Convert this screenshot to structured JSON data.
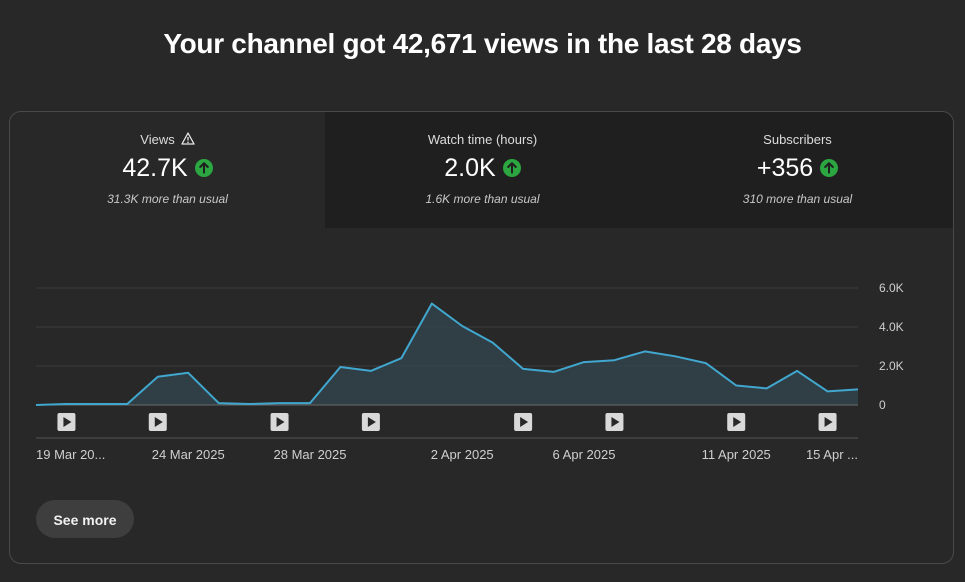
{
  "headline": "Your channel got 42,671 views in the last 28 days",
  "tabs": [
    {
      "label": "Views",
      "value": "42.7K",
      "sub": "31.3K more than usual",
      "icon": "up-arrow-icon",
      "active": true,
      "has_warning": true
    },
    {
      "label": "Watch time (hours)",
      "value": "2.0K",
      "sub": "1.6K more than usual",
      "icon": "up-arrow-icon",
      "active": false,
      "has_warning": false
    },
    {
      "label": "Subscribers",
      "value": "+356",
      "sub": "310 more than usual",
      "icon": "up-arrow-icon",
      "active": false,
      "has_warning": false
    }
  ],
  "colors": {
    "line": "#41a7cf",
    "area": "#33464f",
    "positive": "#2ba640",
    "grid": "#3d3d3d",
    "axis": "#8a8a8a"
  },
  "see_more_label": "See more",
  "chart_data": {
    "type": "area",
    "series": [
      {
        "values": [
          0,
          50,
          50,
          50,
          1450,
          1650,
          100,
          50,
          100,
          100,
          1950,
          1750,
          2400,
          5200,
          4050,
          3200,
          1850,
          1700,
          2200,
          2300,
          2750,
          2500,
          2150,
          1000,
          850,
          1750,
          700,
          800
        ]
      }
    ],
    "x_ticks": [
      "19 Mar 20...",
      "24 Mar 2025",
      "28 Mar 2025",
      "2 Apr 2025",
      "6 Apr 2025",
      "11 Apr 2025",
      "15 Apr ..."
    ],
    "y_ticks": [
      "6.0K",
      "4.0K",
      "2.0K",
      "0"
    ],
    "ylim": [
      0,
      6000
    ],
    "grid": true,
    "video_markers": [
      1,
      4,
      8,
      11,
      16,
      19,
      23,
      26
    ],
    "marker_icon": "play-icon"
  }
}
